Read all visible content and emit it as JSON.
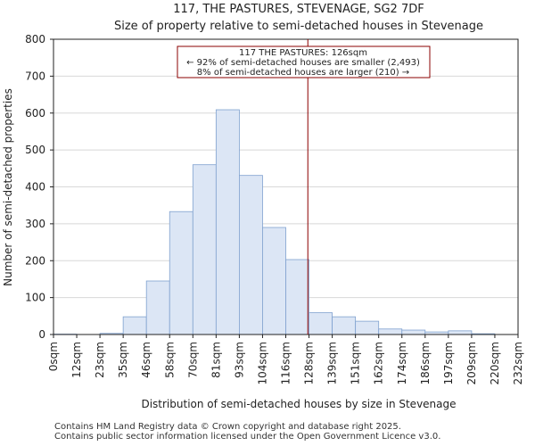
{
  "chart_data": {
    "type": "bar",
    "title": "117, THE PASTURES, STEVENAGE, SG2 7DF",
    "subtitle": "Size of property relative to semi-detached houses in Stevenage",
    "xlabel": "Distribution of semi-detached houses by size in Stevenage",
    "ylabel": "Number of semi-detached properties",
    "ylim": [
      0,
      800
    ],
    "yticks": [
      "0",
      "100",
      "200",
      "300",
      "400",
      "500",
      "600",
      "700",
      "800"
    ],
    "bin_edges_labels": [
      "0sqm",
      "12sqm",
      "23sqm",
      "35sqm",
      "46sqm",
      "58sqm",
      "70sqm",
      "81sqm",
      "93sqm",
      "104sqm",
      "116sqm",
      "128sqm",
      "139sqm",
      "151sqm",
      "162sqm",
      "174sqm",
      "186sqm",
      "197sqm",
      "209sqm",
      "220sqm",
      "232sqm"
    ],
    "values": [
      1,
      0,
      3,
      48,
      145,
      333,
      460,
      609,
      431,
      290,
      203,
      59,
      48,
      36,
      15,
      12,
      7,
      10,
      2,
      0
    ],
    "marker_bin_position": 10.95,
    "annotation": {
      "line1": "117 THE PASTURES: 126sqm",
      "line2": "← 92% of semi-detached houses are smaller (2,493)",
      "line3": "8% of semi-detached houses are larger (210) →"
    },
    "colors": {
      "bar_fill": "#dce6f5",
      "bar_stroke": "#7fa1cf",
      "marker": "#8b0000",
      "grid": "#d8d8d8"
    }
  },
  "footer": {
    "line1": "Contains HM Land Registry data © Crown copyright and database right 2025.",
    "line2": "Contains public sector information licensed under the Open Government Licence v3.0."
  }
}
